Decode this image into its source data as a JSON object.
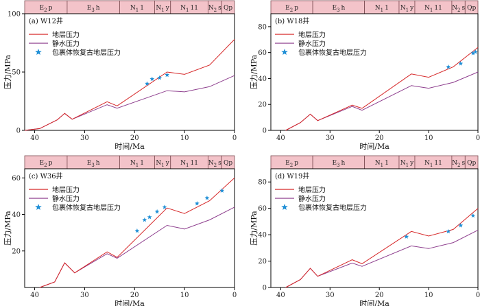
{
  "colors": {
    "formation_fill": "#f3c3c9",
    "formation_stroke": "#7a4a50",
    "formation_pressure": "#d62728",
    "hydrostatic_pressure": "#8e3f8e",
    "inclusion_star": "#1f8fd6"
  },
  "chart_data": [
    {
      "type": "line",
      "title": "(a)  W12井",
      "xlabel": "时间/Ma",
      "ylabel": "压力/MPa",
      "xlim": [
        42,
        0
      ],
      "ylim": [
        0,
        100
      ],
      "xticks": [
        "40",
        "30",
        "20",
        "10",
        "0"
      ],
      "yticks": [
        "0",
        "50",
        "100"
      ],
      "strata": [
        {
          "label": "E2p",
          "from": 42,
          "to": 33.5
        },
        {
          "label": "E3h",
          "from": 33.5,
          "to": 23
        },
        {
          "label": "N11",
          "from": 23,
          "to": 16
        },
        {
          "label": "N1y",
          "from": 16,
          "to": 12.8
        },
        {
          "label": "N111",
          "from": 12.8,
          "to": 5.3
        },
        {
          "label": "N2s",
          "from": 5.3,
          "to": 2.6
        },
        {
          "label": "Qp",
          "from": 2.6,
          "to": 0
        }
      ],
      "legend": [
        "地层压力",
        "静水压力",
        "包裹体恢复古地层压力"
      ],
      "series": [
        {
          "name": "地层压力",
          "x": [
            42,
            39,
            35.5,
            34,
            32.5,
            25.5,
            23.5,
            13.5,
            10,
            5,
            0
          ],
          "y": [
            0,
            1.5,
            9,
            14.5,
            9.5,
            24.5,
            21,
            50,
            48,
            56,
            78
          ]
        },
        {
          "name": "静水压力",
          "x": [
            42,
            39,
            35.5,
            34,
            32.5,
            25.5,
            23.5,
            13.5,
            10,
            5,
            0
          ],
          "y": [
            0,
            1.5,
            9,
            14.5,
            9.5,
            22,
            19,
            34,
            33,
            37.5,
            47
          ]
        },
        {
          "name": "包裹体恢复古地层压力",
          "x": [
            17.5,
            16.5,
            15,
            13.5
          ],
          "y": [
            40,
            44,
            45,
            47.5
          ]
        }
      ]
    },
    {
      "type": "line",
      "title": "(b)  W18井",
      "xlabel": "时间/Ma",
      "ylabel": "压力/MPa",
      "xlim": [
        42,
        0
      ],
      "ylim": [
        0,
        90
      ],
      "xticks": [
        "40",
        "30",
        "20",
        "10",
        "0"
      ],
      "yticks": [
        "0",
        "20",
        "40",
        "60",
        "80"
      ],
      "strata": [
        {
          "label": "E2p",
          "from": 42,
          "to": 33.5
        },
        {
          "label": "E3h",
          "from": 33.5,
          "to": 23
        },
        {
          "label": "N11",
          "from": 23,
          "to": 16
        },
        {
          "label": "N1y",
          "from": 16,
          "to": 12.8
        },
        {
          "label": "N111",
          "from": 12.8,
          "to": 5.3
        },
        {
          "label": "N2s",
          "from": 5.3,
          "to": 2.6
        },
        {
          "label": "Qp",
          "from": 2.6,
          "to": 0
        }
      ],
      "legend": [
        "地层压力",
        "静水压力",
        "包裹体恢复古地层压力"
      ],
      "series": [
        {
          "name": "地层压力",
          "x": [
            39,
            36,
            34,
            32.5,
            25.5,
            23.5,
            13.5,
            10,
            5,
            0
          ],
          "y": [
            0,
            6,
            12.5,
            7.5,
            19.5,
            17,
            43.5,
            41,
            49,
            64
          ]
        },
        {
          "name": "静水压力",
          "x": [
            39,
            36,
            34,
            32.5,
            25.5,
            23.5,
            13.5,
            10,
            5,
            0
          ],
          "y": [
            0,
            6,
            12.5,
            7.5,
            18.5,
            15.5,
            34.5,
            32.5,
            37,
            45
          ]
        },
        {
          "name": "包裹体恢复古地层压力",
          "x": [
            6,
            3.5,
            1,
            0.5
          ],
          "y": [
            49,
            51.5,
            59.5,
            60.5
          ]
        }
      ]
    },
    {
      "type": "line",
      "title": "(c)  W36井",
      "xlabel": "时间/Ma",
      "ylabel": "压力/MPa",
      "xlim": [
        42,
        0
      ],
      "ylim": [
        0,
        65
      ],
      "xticks": [
        "40",
        "30",
        "20",
        "10",
        "0"
      ],
      "yticks": [
        "20",
        "40",
        "60"
      ],
      "strata": [
        {
          "label": "E2p",
          "from": 42,
          "to": 33.5
        },
        {
          "label": "E3h",
          "from": 33.5,
          "to": 23
        },
        {
          "label": "N11",
          "from": 23,
          "to": 16
        },
        {
          "label": "N1y",
          "from": 16,
          "to": 12.8
        },
        {
          "label": "N111",
          "from": 12.8,
          "to": 5.3
        },
        {
          "label": "N2s",
          "from": 5.3,
          "to": 2.6
        },
        {
          "label": "Qp",
          "from": 2.6,
          "to": 0
        }
      ],
      "legend": [
        "地层压力",
        "静水压力",
        "包裹体恢复古地层压力"
      ],
      "series": [
        {
          "name": "地层压力",
          "x": [
            39,
            36,
            34,
            32,
            25.5,
            23.5,
            13.5,
            10,
            5,
            0
          ],
          "y": [
            0,
            3,
            13.5,
            8,
            19.5,
            16.5,
            43.5,
            40.5,
            47.5,
            60
          ]
        },
        {
          "name": "静水压力",
          "x": [
            39,
            36,
            34,
            32,
            25.5,
            23.5,
            13.5,
            10,
            5,
            0
          ],
          "y": [
            0,
            3,
            13.5,
            8,
            18.5,
            16,
            34,
            32,
            37,
            44
          ]
        },
        {
          "name": "包裹体恢复古地层压力",
          "x": [
            19.5,
            18,
            17,
            15.5,
            14,
            7.5,
            5.5,
            2.5
          ],
          "y": [
            31,
            37,
            38.5,
            41.5,
            44,
            46,
            49,
            53
          ]
        }
      ]
    },
    {
      "type": "line",
      "title": "(d)  W19井",
      "xlabel": "时间/Ma",
      "ylabel": "压力/MPa",
      "xlim": [
        42,
        0
      ],
      "ylim": [
        0,
        90
      ],
      "xticks": [
        "40",
        "30",
        "20",
        "10",
        "0"
      ],
      "yticks": [
        "0",
        "20",
        "40",
        "60",
        "80"
      ],
      "strata": [
        {
          "label": "E2p",
          "from": 42,
          "to": 33.5
        },
        {
          "label": "E3h",
          "from": 33.5,
          "to": 23
        },
        {
          "label": "N11",
          "from": 23,
          "to": 16
        },
        {
          "label": "N1y",
          "from": 16,
          "to": 12.8
        },
        {
          "label": "N111",
          "from": 12.8,
          "to": 5.3
        },
        {
          "label": "N2s",
          "from": 5.3,
          "to": 2.6
        },
        {
          "label": "Qp",
          "from": 2.6,
          "to": 0
        }
      ],
      "legend": [
        "地层压力",
        "静水压力",
        "包裹体恢复古地层压力"
      ],
      "series": [
        {
          "name": "地层压力",
          "x": [
            39,
            36,
            34,
            32.5,
            25.5,
            23.5,
            13.5,
            10,
            5,
            0
          ],
          "y": [
            0,
            6,
            14.5,
            8.5,
            21,
            18,
            42.5,
            39,
            44,
            60
          ]
        },
        {
          "name": "静水压力",
          "x": [
            39,
            36,
            34,
            32.5,
            25.5,
            23.5,
            13.5,
            10,
            5,
            0
          ],
          "y": [
            0,
            6,
            14.5,
            8.5,
            18.5,
            16,
            31.5,
            29.5,
            34,
            43.5
          ]
        },
        {
          "name": "包裹体恢复古地层压力",
          "x": [
            14.5,
            6,
            3.5,
            1
          ],
          "y": [
            38.5,
            42.5,
            47,
            54.5
          ]
        }
      ]
    }
  ]
}
